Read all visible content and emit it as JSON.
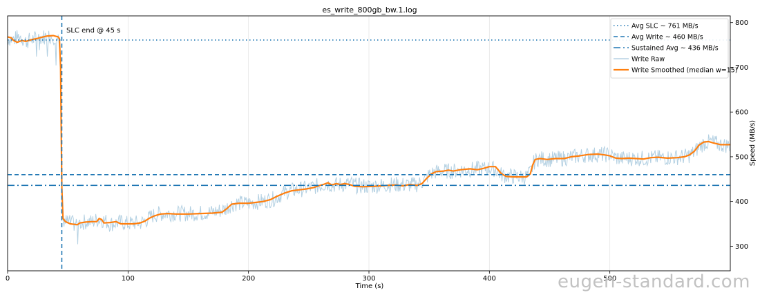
{
  "chart_data": {
    "type": "line",
    "title": "es_write_800gb_bw.1.log",
    "xlabel": "Time (s)",
    "ylabel": "Speed (MB/s)",
    "xlim": [
      0,
      600
    ],
    "ylim": [
      245,
      815
    ],
    "xticks": [
      0,
      100,
      200,
      300,
      400,
      500
    ],
    "yticks": [
      300,
      400,
      500,
      600,
      700,
      800
    ],
    "grid": "x-only",
    "legend_position": "top-right",
    "colors": {
      "blue": "#1f77b4",
      "orange": "#ff7f0e",
      "raw": "#a6c8dd"
    },
    "reference_lines": [
      {
        "name": "Avg SLC ~ 761 MB/s",
        "orientation": "horizontal",
        "value": 761,
        "style": "dotted"
      },
      {
        "name": "Avg Write ~ 460 MB/s",
        "orientation": "horizontal",
        "value": 460,
        "style": "dashed"
      },
      {
        "name": "Sustained Avg ~ 436 MB/s",
        "orientation": "horizontal",
        "value": 436,
        "style": "dashdot"
      },
      {
        "orientation": "vertical",
        "value": 45,
        "style": "dashed",
        "annotation": "SLC end @ 45 s"
      }
    ],
    "series": [
      {
        "name": "Write Raw",
        "noise": 18,
        "points": [
          [
            0,
            765
          ],
          [
            5,
            762
          ],
          [
            10,
            770
          ],
          [
            15,
            758
          ],
          [
            20,
            762
          ],
          [
            25,
            766
          ],
          [
            30,
            768
          ],
          [
            35,
            770
          ],
          [
            40,
            768
          ],
          [
            43,
            764
          ],
          [
            44,
            700
          ],
          [
            45,
            430
          ],
          [
            46,
            365
          ],
          [
            48,
            355
          ],
          [
            55,
            350
          ],
          [
            60,
            352
          ],
          [
            65,
            355
          ],
          [
            70,
            354
          ],
          [
            75,
            360
          ],
          [
            80,
            358
          ],
          [
            85,
            350
          ],
          [
            90,
            352
          ],
          [
            95,
            354
          ],
          [
            100,
            350
          ],
          [
            105,
            352
          ],
          [
            110,
            352
          ],
          [
            115,
            358
          ],
          [
            120,
            368
          ],
          [
            125,
            372
          ],
          [
            130,
            373
          ],
          [
            140,
            373
          ],
          [
            150,
            373
          ],
          [
            160,
            374
          ],
          [
            170,
            376
          ],
          [
            180,
            382
          ],
          [
            185,
            392
          ],
          [
            190,
            396
          ],
          [
            200,
            396
          ],
          [
            205,
            398
          ],
          [
            210,
            400
          ],
          [
            215,
            402
          ],
          [
            220,
            405
          ],
          [
            225,
            412
          ],
          [
            230,
            420
          ],
          [
            235,
            424
          ],
          [
            240,
            426
          ],
          [
            245,
            428
          ],
          [
            250,
            430
          ],
          [
            255,
            433
          ],
          [
            260,
            436
          ],
          [
            265,
            440
          ],
          [
            270,
            437
          ],
          [
            275,
            438
          ],
          [
            280,
            438
          ],
          [
            285,
            440
          ],
          [
            290,
            435
          ],
          [
            300,
            434
          ],
          [
            310,
            436
          ],
          [
            320,
            438
          ],
          [
            330,
            437
          ],
          [
            340,
            438
          ],
          [
            345,
            445
          ],
          [
            350,
            460
          ],
          [
            355,
            466
          ],
          [
            360,
            468
          ],
          [
            370,
            468
          ],
          [
            375,
            470
          ],
          [
            385,
            472
          ],
          [
            395,
            473
          ],
          [
            400,
            474
          ],
          [
            405,
            472
          ],
          [
            410,
            460
          ],
          [
            415,
            457
          ],
          [
            420,
            456
          ],
          [
            430,
            455
          ],
          [
            432,
            458
          ],
          [
            435,
            470
          ],
          [
            437,
            488
          ],
          [
            440,
            496
          ],
          [
            450,
            494
          ],
          [
            460,
            496
          ],
          [
            470,
            500
          ],
          [
            480,
            504
          ],
          [
            490,
            505
          ],
          [
            500,
            505
          ],
          [
            505,
            498
          ],
          [
            510,
            496
          ],
          [
            520,
            497
          ],
          [
            530,
            496
          ],
          [
            540,
            498
          ],
          [
            550,
            498
          ],
          [
            560,
            500
          ],
          [
            565,
            502
          ],
          [
            570,
            510
          ],
          [
            575,
            525
          ],
          [
            580,
            532
          ],
          [
            585,
            533
          ],
          [
            590,
            528
          ],
          [
            595,
            526
          ],
          [
            600,
            526
          ]
        ]
      },
      {
        "name": "Write Smoothed (median w=15)",
        "points": [
          [
            0,
            768
          ],
          [
            3,
            766
          ],
          [
            5,
            760
          ],
          [
            8,
            756
          ],
          [
            12,
            760
          ],
          [
            15,
            758
          ],
          [
            20,
            762
          ],
          [
            24,
            764
          ],
          [
            28,
            767
          ],
          [
            33,
            770
          ],
          [
            38,
            771
          ],
          [
            42,
            768
          ],
          [
            43,
            764
          ],
          [
            44,
            700
          ],
          [
            45,
            430
          ],
          [
            46,
            362
          ],
          [
            48,
            355
          ],
          [
            52,
            350
          ],
          [
            58,
            348
          ],
          [
            60,
            352
          ],
          [
            65,
            354
          ],
          [
            70,
            355
          ],
          [
            74,
            355
          ],
          [
            76,
            362
          ],
          [
            78,
            360
          ],
          [
            80,
            352
          ],
          [
            85,
            353
          ],
          [
            90,
            355
          ],
          [
            94,
            350
          ],
          [
            100,
            350
          ],
          [
            105,
            350
          ],
          [
            110,
            352
          ],
          [
            114,
            356
          ],
          [
            118,
            363
          ],
          [
            122,
            368
          ],
          [
            127,
            372
          ],
          [
            133,
            373
          ],
          [
            140,
            372
          ],
          [
            150,
            372
          ],
          [
            160,
            373
          ],
          [
            170,
            374
          ],
          [
            178,
            376
          ],
          [
            182,
            384
          ],
          [
            186,
            394
          ],
          [
            192,
            396
          ],
          [
            200,
            396
          ],
          [
            206,
            398
          ],
          [
            212,
            400
          ],
          [
            218,
            404
          ],
          [
            224,
            412
          ],
          [
            230,
            419
          ],
          [
            236,
            424
          ],
          [
            242,
            426
          ],
          [
            248,
            428
          ],
          [
            254,
            431
          ],
          [
            258,
            435
          ],
          [
            262,
            438
          ],
          [
            266,
            442
          ],
          [
            269,
            437
          ],
          [
            273,
            440
          ],
          [
            276,
            438
          ],
          [
            280,
            440
          ],
          [
            284,
            438
          ],
          [
            288,
            434
          ],
          [
            295,
            433
          ],
          [
            305,
            434
          ],
          [
            315,
            436
          ],
          [
            322,
            437
          ],
          [
            328,
            435
          ],
          [
            334,
            438
          ],
          [
            340,
            436
          ],
          [
            344,
            440
          ],
          [
            348,
            452
          ],
          [
            352,
            462
          ],
          [
            356,
            467
          ],
          [
            362,
            468
          ],
          [
            366,
            470
          ],
          [
            370,
            468
          ],
          [
            376,
            471
          ],
          [
            384,
            473
          ],
          [
            390,
            471
          ],
          [
            395,
            474
          ],
          [
            400,
            478
          ],
          [
            405,
            478
          ],
          [
            410,
            462
          ],
          [
            414,
            456
          ],
          [
            420,
            455
          ],
          [
            426,
            455
          ],
          [
            431,
            455
          ],
          [
            434,
            462
          ],
          [
            436,
            482
          ],
          [
            438,
            494
          ],
          [
            442,
            496
          ],
          [
            448,
            494
          ],
          [
            455,
            496
          ],
          [
            462,
            496
          ],
          [
            468,
            500
          ],
          [
            475,
            502
          ],
          [
            482,
            505
          ],
          [
            490,
            506
          ],
          [
            496,
            504
          ],
          [
            500,
            502
          ],
          [
            505,
            497
          ],
          [
            510,
            496
          ],
          [
            516,
            497
          ],
          [
            522,
            496
          ],
          [
            528,
            495
          ],
          [
            534,
            498
          ],
          [
            540,
            499
          ],
          [
            548,
            497
          ],
          [
            556,
            498
          ],
          [
            562,
            500
          ],
          [
            566,
            504
          ],
          [
            570,
            512
          ],
          [
            574,
            526
          ],
          [
            578,
            533
          ],
          [
            582,
            534
          ],
          [
            586,
            531
          ],
          [
            592,
            527
          ],
          [
            600,
            527
          ]
        ]
      }
    ]
  },
  "watermark": "eugen-standard.com"
}
